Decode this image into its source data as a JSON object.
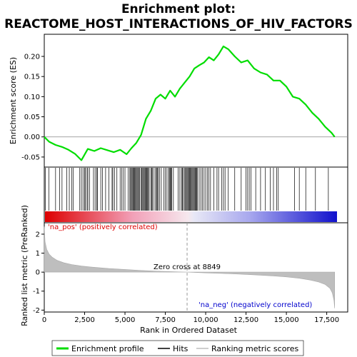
{
  "chart_data": {
    "type": "line",
    "title_line1": "Enrichment plot:",
    "title_line2": "REACTOME_HOST_INTERACTIONS_OF_HIV_FACTORS",
    "xlabel": "Rank in Ordered Dataset",
    "ylabel_top": "Enrichment score (ES)",
    "ylabel_bottom": "Ranked list metric (PreRanked)",
    "xlim": [
      0,
      18800
    ],
    "es_ylim": [
      -0.075,
      0.255
    ],
    "metric_ylim": [
      -2.1,
      2.6
    ],
    "x_ticks": [
      0,
      2500,
      5000,
      7500,
      10000,
      12500,
      15000,
      17500
    ],
    "x_tick_labels": [
      "0",
      "2,500",
      "5,000",
      "7,500",
      "10,000",
      "12,500",
      "15,000",
      "17,500"
    ],
    "es_ticks": [
      -0.05,
      0.0,
      0.05,
      0.1,
      0.15,
      0.2
    ],
    "es_tick_labels": [
      "-0.05",
      "0.00",
      "0.05",
      "0.10",
      "0.15",
      "0.20"
    ],
    "metric_ticks": [
      -2,
      -1,
      0,
      1,
      2
    ],
    "metric_tick_labels": [
      "-2",
      "-1",
      "0",
      "1",
      "2"
    ],
    "es_profile": {
      "x": [
        0,
        300,
        700,
        1100,
        1500,
        1900,
        2300,
        2700,
        3100,
        3500,
        3900,
        4300,
        4700,
        5100,
        5400,
        5700,
        6000,
        6300,
        6600,
        6900,
        7200,
        7500,
        7800,
        8100,
        8400,
        8700,
        9000,
        9300,
        9600,
        9900,
        10200,
        10500,
        10800,
        11100,
        11400,
        11800,
        12200,
        12600,
        13000,
        13400,
        13800,
        14200,
        14600,
        15000,
        15400,
        15800,
        16200,
        16600,
        17000,
        17400,
        17800,
        17990
      ],
      "y": [
        0.0,
        -0.012,
        -0.02,
        -0.025,
        -0.032,
        -0.042,
        -0.058,
        -0.03,
        -0.035,
        -0.028,
        -0.033,
        -0.038,
        -0.032,
        -0.043,
        -0.028,
        -0.015,
        0.005,
        0.045,
        0.065,
        0.095,
        0.105,
        0.095,
        0.115,
        0.1,
        0.12,
        0.135,
        0.15,
        0.17,
        0.178,
        0.185,
        0.198,
        0.19,
        0.205,
        0.225,
        0.218,
        0.2,
        0.185,
        0.19,
        0.17,
        0.16,
        0.155,
        0.14,
        0.14,
        0.125,
        0.1,
        0.095,
        0.08,
        0.06,
        0.045,
        0.025,
        0.01,
        0.0
      ]
    },
    "hits": [
      60,
      280,
      700,
      950,
      1100,
      1400,
      1550,
      1700,
      1800,
      2200,
      2300,
      2400,
      2500,
      2550,
      2650,
      2700,
      2800,
      3050,
      3150,
      3250,
      3300,
      3500,
      3600,
      3800,
      4000,
      4200,
      4250,
      4350,
      4500,
      4700,
      4800,
      4900,
      5000,
      5200,
      5300,
      5350,
      5400,
      5450,
      5500,
      5550,
      5600,
      5650,
      5700,
      5750,
      5800,
      5850,
      5900,
      6000,
      6050,
      6100,
      6150,
      6200,
      6250,
      6300,
      6350,
      6400,
      6450,
      6500,
      6600,
      6650,
      6700,
      6800,
      6900,
      6950,
      7000,
      7050,
      7150,
      7250,
      7400,
      7500,
      7600,
      7700,
      7750,
      7800,
      7850,
      7900,
      8000,
      8300,
      8400,
      8500,
      8550,
      8600,
      8700,
      8750,
      8800,
      8850,
      8900,
      8950,
      9000,
      9050,
      9100,
      9150,
      9200,
      9250,
      9300,
      9350,
      9400,
      9450,
      9500,
      9600,
      9700,
      9800,
      9900,
      10000,
      10100,
      10200,
      10300,
      10500,
      10700,
      10800,
      11000,
      11100,
      11200,
      11400,
      11800,
      12200,
      12500,
      12600,
      12700,
      12800,
      13100,
      13400,
      13700,
      14000,
      14200,
      14400,
      14500,
      15500,
      15800,
      16200,
      16800,
      17600
    ],
    "metric_profile": {
      "x": [
        0,
        50,
        150,
        300,
        500,
        800,
        1200,
        1700,
        2300,
        3000,
        4000,
        5000,
        6000,
        7000,
        8000,
        8849,
        10000,
        11000,
        12000,
        13000,
        14000,
        15000,
        15800,
        16500,
        17000,
        17400,
        17700,
        17850,
        17950,
        17990
      ],
      "y": [
        2.4,
        1.6,
        1.2,
        0.95,
        0.78,
        0.62,
        0.5,
        0.4,
        0.32,
        0.26,
        0.19,
        0.14,
        0.09,
        0.05,
        0.02,
        0.0,
        -0.04,
        -0.07,
        -0.1,
        -0.14,
        -0.19,
        -0.25,
        -0.32,
        -0.42,
        -0.52,
        -0.65,
        -0.85,
        -1.1,
        -1.5,
        -1.9
      ]
    },
    "zero_cross_label": "Zero cross at 8849",
    "zero_cross_x": 8849,
    "pos_label": "'na_pos' (positively correlated)",
    "neg_label": "'na_neg' (negatively correlated)",
    "legend": [
      "Enrichment profile",
      "Hits",
      "Ranking metric scores"
    ],
    "colors": {
      "profile": "#00dd00",
      "hits": "#000000",
      "metric_fill": "#bebebe",
      "pos_label": "#dd0000",
      "neg_label": "#0000cc",
      "bar_red": "#dd0000",
      "bar_blue": "#0000cc"
    }
  }
}
